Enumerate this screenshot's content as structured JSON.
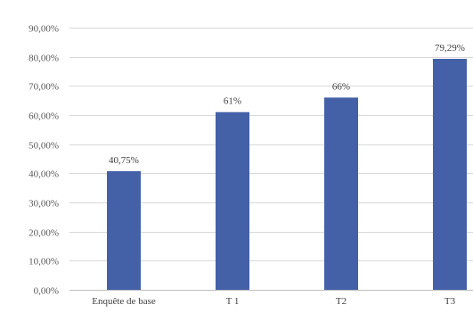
{
  "chart_data": {
    "type": "bar",
    "title": "",
    "xlabel": "",
    "ylabel": "",
    "categories": [
      "Enquête de base",
      "T 1",
      "T2",
      "T3"
    ],
    "values": [
      40.75,
      61,
      66,
      79.29
    ],
    "data_labels": [
      "40,75%",
      "61%",
      "66%",
      "79,29%"
    ],
    "ylim": [
      0,
      90
    ],
    "yticks": [
      0,
      10,
      20,
      30,
      40,
      50,
      60,
      70,
      80,
      90
    ],
    "ytick_labels": [
      "0,00%",
      "10,00%",
      "20,00%",
      "30,00%",
      "40,00%",
      "50,00%",
      "60,00%",
      "70,00%",
      "80,00%",
      "90,00%"
    ],
    "grid": true,
    "legend": "none",
    "bar_color": "#4461a8"
  }
}
